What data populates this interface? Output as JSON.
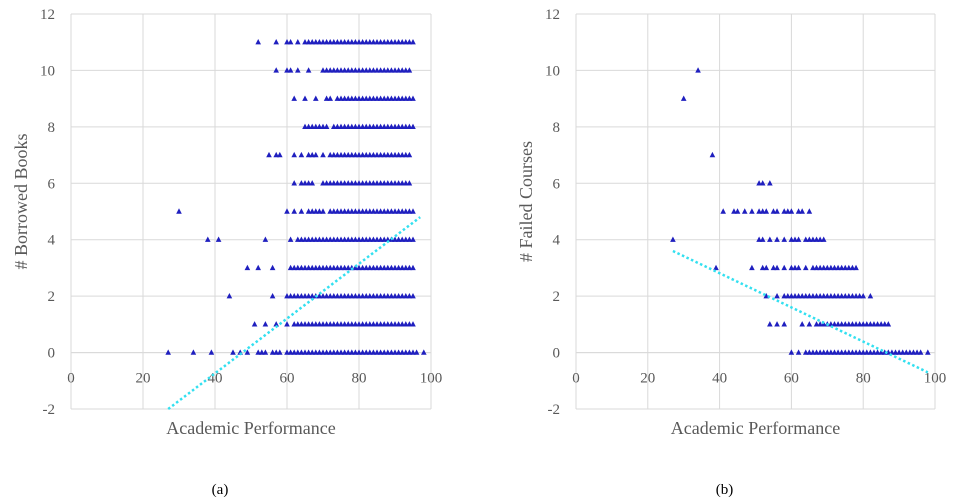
{
  "chart_data": [
    {
      "type": "scatter",
      "caption": "(a)",
      "xlabel": "Academic Performance",
      "ylabel": "# Borrowed Books",
      "xlim": [
        0,
        100
      ],
      "ylim": [
        -2,
        12
      ],
      "xticks": [
        "0",
        "20",
        "40",
        "60",
        "80",
        "100"
      ],
      "yticks": [
        "-2",
        "0",
        "2",
        "4",
        "6",
        "8",
        "10",
        "12"
      ],
      "grid": true,
      "marker_color": "#1f1fbf",
      "trendline_color": "#33e0f0",
      "trendline": {
        "style": "dotted",
        "from": [
          27,
          -2
        ],
        "to": [
          97,
          4.8
        ]
      },
      "series": [
        {
          "y": 0,
          "x": [
            27,
            34,
            39,
            45,
            47,
            49,
            52,
            53,
            54,
            56,
            57,
            58,
            60,
            61,
            62,
            63,
            64,
            65,
            66,
            67,
            68,
            69,
            70,
            71,
            72,
            73,
            74,
            75,
            76,
            77,
            78,
            79,
            80,
            81,
            82,
            83,
            84,
            85,
            86,
            87,
            88,
            89,
            90,
            91,
            92,
            93,
            94,
            95,
            96,
            98
          ]
        },
        {
          "y": 1,
          "x": [
            51,
            54,
            57,
            60,
            62,
            63,
            64,
            65,
            66,
            67,
            68,
            69,
            70,
            71,
            72,
            73,
            74,
            75,
            76,
            77,
            78,
            79,
            80,
            81,
            82,
            83,
            84,
            85,
            86,
            87,
            88,
            89,
            90,
            91,
            92,
            93,
            94,
            95
          ]
        },
        {
          "y": 2,
          "x": [
            44,
            56,
            60,
            61,
            62,
            63,
            64,
            65,
            66,
            67,
            68,
            69,
            70,
            71,
            72,
            73,
            74,
            75,
            76,
            77,
            78,
            79,
            80,
            81,
            82,
            83,
            84,
            85,
            86,
            87,
            88,
            89,
            90,
            91,
            92,
            93,
            94,
            95
          ]
        },
        {
          "y": 3,
          "x": [
            49,
            52,
            56,
            61,
            62,
            63,
            64,
            65,
            66,
            67,
            68,
            69,
            70,
            71,
            72,
            73,
            74,
            75,
            76,
            77,
            78,
            79,
            80,
            81,
            82,
            83,
            84,
            85,
            86,
            87,
            88,
            89,
            90,
            91,
            92,
            93,
            94,
            95
          ]
        },
        {
          "y": 4,
          "x": [
            38,
            41,
            54,
            61,
            63,
            64,
            65,
            66,
            67,
            68,
            69,
            70,
            71,
            72,
            73,
            74,
            75,
            76,
            77,
            78,
            79,
            80,
            81,
            82,
            83,
            84,
            85,
            86,
            87,
            88,
            89,
            90,
            91,
            92,
            93,
            94,
            95
          ]
        },
        {
          "y": 5,
          "x": [
            30,
            60,
            62,
            64,
            66,
            67,
            68,
            69,
            70,
            72,
            73,
            74,
            75,
            76,
            77,
            78,
            79,
            80,
            81,
            82,
            83,
            84,
            85,
            86,
            87,
            88,
            89,
            90,
            91,
            92,
            93,
            94,
            95
          ]
        },
        {
          "y": 6,
          "x": [
            62,
            64,
            65,
            66,
            67,
            70,
            71,
            72,
            73,
            74,
            75,
            76,
            77,
            78,
            79,
            80,
            81,
            82,
            83,
            84,
            85,
            86,
            87,
            88,
            89,
            90,
            91,
            92,
            93,
            94
          ]
        },
        {
          "y": 7,
          "x": [
            55,
            57,
            58,
            62,
            64,
            66,
            67,
            68,
            70,
            72,
            73,
            74,
            75,
            76,
            77,
            78,
            79,
            80,
            81,
            82,
            83,
            84,
            85,
            86,
            87,
            88,
            89,
            90,
            91,
            92,
            93,
            94
          ]
        },
        {
          "y": 8,
          "x": [
            65,
            66,
            67,
            68,
            69,
            70,
            71,
            73,
            74,
            75,
            76,
            77,
            78,
            79,
            80,
            81,
            82,
            83,
            84,
            85,
            86,
            87,
            88,
            89,
            90,
            91,
            92,
            93,
            94,
            95
          ]
        },
        {
          "y": 9,
          "x": [
            62,
            65,
            68,
            71,
            72,
            74,
            75,
            76,
            77,
            78,
            79,
            80,
            81,
            82,
            83,
            84,
            85,
            86,
            87,
            88,
            89,
            90,
            91,
            92,
            93,
            94,
            95
          ]
        },
        {
          "y": 10,
          "x": [
            57,
            60,
            61,
            63,
            66,
            70,
            71,
            72,
            73,
            74,
            75,
            76,
            77,
            78,
            79,
            80,
            81,
            82,
            83,
            84,
            85,
            86,
            87,
            88,
            89,
            90,
            91,
            92,
            93,
            94
          ]
        },
        {
          "y": 11,
          "x": [
            52,
            57,
            60,
            61,
            63,
            65,
            66,
            67,
            68,
            69,
            70,
            71,
            72,
            73,
            74,
            75,
            76,
            77,
            78,
            79,
            80,
            81,
            82,
            83,
            84,
            85,
            86,
            87,
            88,
            89,
            90,
            91,
            92,
            93,
            94,
            95
          ]
        }
      ]
    },
    {
      "type": "scatter",
      "caption": "(b)",
      "xlabel": "Academic Performance",
      "ylabel": "# Failed Courses",
      "xlim": [
        0,
        100
      ],
      "ylim": [
        -2,
        12
      ],
      "xticks": [
        "0",
        "20",
        "40",
        "60",
        "80",
        "100"
      ],
      "yticks": [
        "-2",
        "0",
        "2",
        "4",
        "6",
        "8",
        "10",
        "12"
      ],
      "grid": true,
      "marker_color": "#1f1fbf",
      "trendline_color": "#33e0f0",
      "trendline": {
        "style": "dotted",
        "from": [
          27,
          3.6
        ],
        "to": [
          98,
          -0.7
        ]
      },
      "series": [
        {
          "y": 0,
          "x": [
            60,
            62,
            64,
            65,
            66,
            67,
            68,
            69,
            70,
            71,
            72,
            73,
            74,
            75,
            76,
            77,
            78,
            79,
            80,
            81,
            82,
            83,
            84,
            85,
            86,
            87,
            88,
            89,
            90,
            91,
            92,
            93,
            94,
            95,
            96,
            98
          ]
        },
        {
          "y": 1,
          "x": [
            54,
            56,
            58,
            63,
            65,
            67,
            68,
            69,
            70,
            71,
            72,
            73,
            74,
            75,
            76,
            77,
            78,
            79,
            80,
            81,
            82,
            83,
            84,
            85,
            86,
            87
          ]
        },
        {
          "y": 2,
          "x": [
            53,
            56,
            58,
            59,
            60,
            61,
            62,
            63,
            64,
            65,
            66,
            67,
            68,
            69,
            70,
            71,
            72,
            73,
            74,
            75,
            76,
            77,
            78,
            79,
            80,
            82
          ]
        },
        {
          "y": 3,
          "x": [
            39,
            49,
            52,
            53,
            55,
            56,
            58,
            60,
            61,
            62,
            64,
            66,
            67,
            68,
            69,
            70,
            71,
            72,
            73,
            74,
            75,
            76,
            77,
            78
          ]
        },
        {
          "y": 4,
          "x": [
            27,
            51,
            52,
            54,
            56,
            58,
            60,
            61,
            62,
            64,
            65,
            66,
            67,
            68,
            69
          ]
        },
        {
          "y": 5,
          "x": [
            41,
            44,
            45,
            47,
            49,
            51,
            52,
            53,
            55,
            56,
            58,
            59,
            60,
            62,
            63,
            65
          ]
        },
        {
          "y": 6,
          "x": [
            51,
            52,
            54
          ]
        },
        {
          "y": 7,
          "x": [
            38
          ]
        },
        {
          "y": 9,
          "x": [
            30
          ]
        },
        {
          "y": 10,
          "x": [
            34
          ]
        }
      ]
    }
  ]
}
